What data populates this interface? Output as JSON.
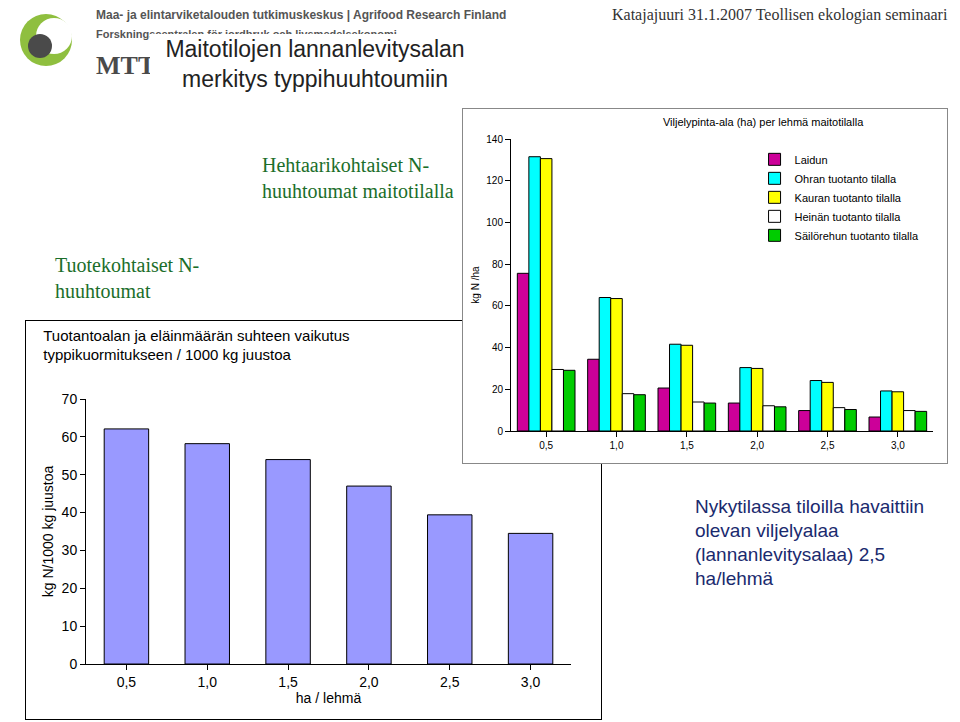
{
  "slide": {
    "logo": "MTT",
    "organisation": "Maa- ja elintarviketalouden tutkimuskeskus | Agrifood Research Finland",
    "organisation_sv": "Forskningscentralen för jordbruk och livsmedelsekonomi",
    "title": "Maitotilojen lannanlevitysalan merkitys typpihuuhtoumiin",
    "footer": "Katajajuuri 31.1.2007 Teollisen ekologian seminaari",
    "heading_product": "Tuotekohtaiset N-huuhtoumat",
    "heading_hectare": "Hehtaarikohtaiset N-huuhtoumat maitotilalla",
    "note": "Nykytilassa tiloilla havaittiin olevan viljelyalaa (lannanlevitysalaa) 2,5 ha/lehmä"
  },
  "chart_data": [
    {
      "type": "bar",
      "title": "Tuotantoalan ja eläinmäärän suhteen vaikutus typpikuormitukseen / 1000 kg juustoa",
      "x_label": "ha / lehmä",
      "y_label": "kg N/1000 kg juustoa",
      "categories": [
        "0,5",
        "1,0",
        "1,5",
        "2,0",
        "2,5",
        "3,0"
      ],
      "values": [
        62.1,
        58.2,
        54.0,
        47.0,
        39.4,
        34.5
      ],
      "color": "#9999ff",
      "ylim": [
        0,
        70
      ],
      "yticks": [
        0,
        10,
        20,
        30,
        40,
        50,
        60,
        70
      ],
      "grid": false
    },
    {
      "type": "bar",
      "title": "Viljelypinta-ala (ha) per lehmä maitotilalla",
      "y_label": "kg N /ha",
      "categories": [
        "0,5",
        "1,0",
        "1,5",
        "2,0",
        "2,5",
        "3,0"
      ],
      "series": [
        {
          "name": "Laidun",
          "color": "#cc0099",
          "values": [
            75.6,
            34.4,
            20.6,
            13.4,
            9.8,
            6.7
          ]
        },
        {
          "name": "Ohran tuotanto tilalla",
          "color": "#00ffff",
          "values": [
            131.5,
            64.0,
            41.6,
            30.4,
            24.2,
            19.2
          ]
        },
        {
          "name": "Kauran tuotanto tilalla",
          "color": "#ffff00",
          "values": [
            130.6,
            63.5,
            41.1,
            30.0,
            23.3,
            18.8
          ]
        },
        {
          "name": "Heinän tuotanto tilalla",
          "color": "#ffffff",
          "values": [
            29.5,
            17.9,
            13.9,
            12.1,
            11.2,
            9.8
          ]
        },
        {
          "name": "Säilörehun tuotanto tilalla",
          "color": "#00cc00",
          "values": [
            29.1,
            17.4,
            13.4,
            11.6,
            10.3,
            9.4
          ]
        }
      ],
      "ylim": [
        0,
        140
      ],
      "yticks": [
        0,
        20,
        40,
        60,
        80,
        100,
        120,
        140
      ],
      "grid": false,
      "legend": "top right"
    }
  ]
}
